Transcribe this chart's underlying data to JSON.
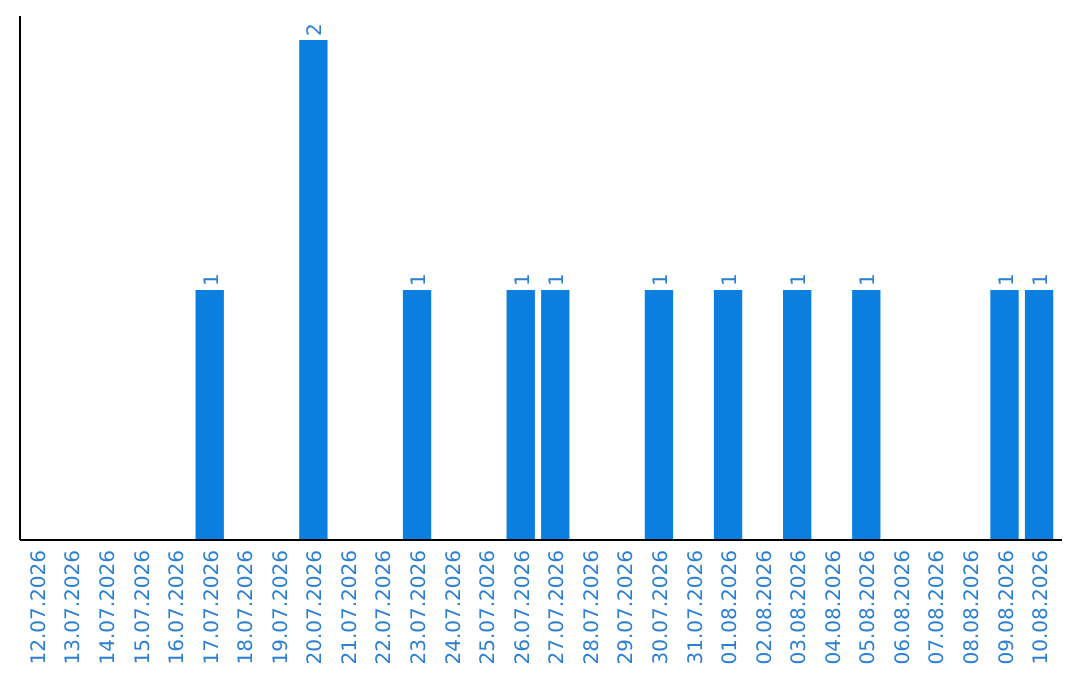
{
  "chart_data": {
    "type": "bar",
    "categories": [
      "12.07.2026",
      "13.07.2026",
      "14.07.2026",
      "15.07.2026",
      "16.07.2026",
      "17.07.2026",
      "18.07.2026",
      "19.07.2026",
      "20.07.2026",
      "21.07.2026",
      "22.07.2026",
      "23.07.2026",
      "24.07.2026",
      "25.07.2026",
      "26.07.2026",
      "27.07.2026",
      "28.07.2026",
      "29.07.2026",
      "30.07.2026",
      "31.07.2026",
      "01.08.2026",
      "02.08.2026",
      "03.08.2026",
      "04.08.2026",
      "05.08.2026",
      "06.08.2026",
      "07.08.2026",
      "08.08.2026",
      "09.08.2026",
      "10.08.2026"
    ],
    "values": [
      0,
      0,
      0,
      0,
      0,
      1,
      0,
      0,
      2,
      0,
      0,
      1,
      0,
      0,
      1,
      1,
      0,
      0,
      1,
      0,
      1,
      0,
      1,
      0,
      1,
      0,
      0,
      0,
      1,
      1
    ],
    "value_labels": [
      null,
      null,
      null,
      null,
      null,
      "1",
      null,
      null,
      "2",
      null,
      null,
      "1",
      null,
      null,
      "1",
      "1",
      null,
      null,
      "1",
      null,
      "1",
      null,
      "1",
      null,
      "1",
      null,
      null,
      null,
      "1",
      "1"
    ],
    "color": "#0a7fe0"
  }
}
